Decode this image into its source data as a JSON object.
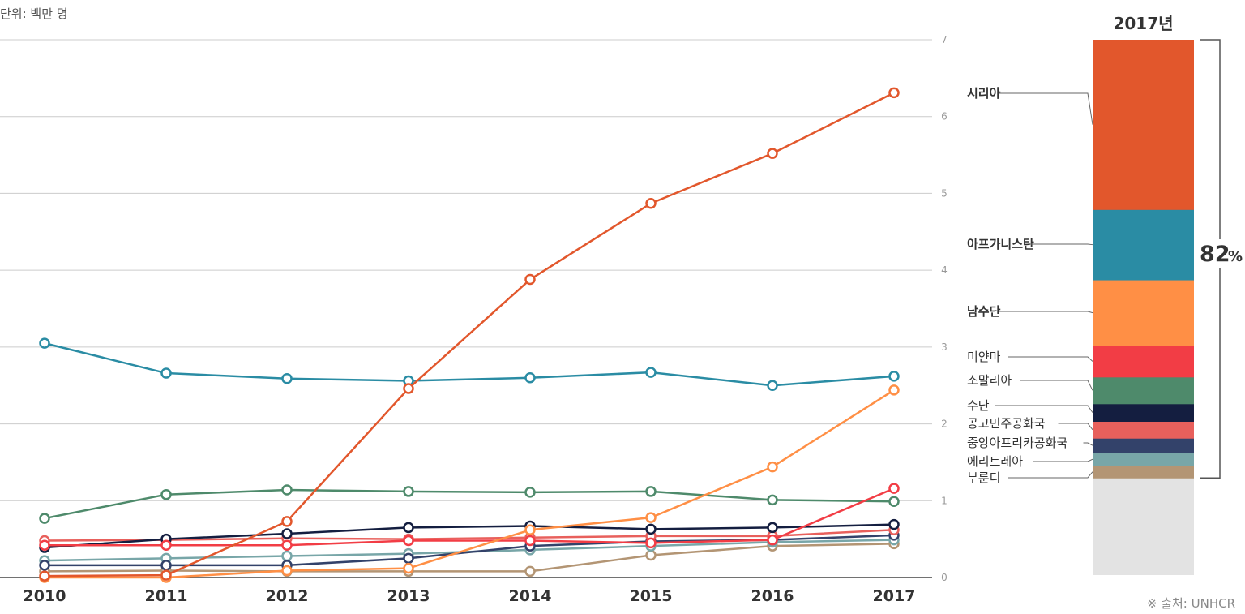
{
  "unit_label": "단위: 백만 명",
  "source_label": "※ 출처: UNHCR",
  "chart_data": [
    {
      "type": "line",
      "title": "",
      "x": [
        "2010",
        "2011",
        "2012",
        "2013",
        "2014",
        "2015",
        "2016",
        "2017"
      ],
      "ylim": [
        0,
        7
      ],
      "yticks": [
        "0",
        "1",
        "2",
        "3",
        "4",
        "5",
        "6",
        "7"
      ],
      "grid": true,
      "series": [
        {
          "name": "시리아",
          "color": "#E2572C",
          "values": [
            0.02,
            0.03,
            0.73,
            2.46,
            3.88,
            4.87,
            5.52,
            6.31
          ]
        },
        {
          "name": "아프가니스탄",
          "color": "#2A8CA4",
          "values": [
            3.05,
            2.66,
            2.59,
            2.56,
            2.6,
            2.67,
            2.5,
            2.62
          ]
        },
        {
          "name": "남수단",
          "color": "#FF8F45",
          "values": [
            0.0,
            0.0,
            0.09,
            0.12,
            0.62,
            0.78,
            1.44,
            2.44
          ]
        },
        {
          "name": "미얀마",
          "color": "#F23D45",
          "values": [
            0.42,
            0.42,
            0.42,
            0.48,
            0.48,
            0.45,
            0.49,
            1.16
          ]
        },
        {
          "name": "소말리아",
          "color": "#4E8A6B",
          "values": [
            0.77,
            1.08,
            1.14,
            1.12,
            1.11,
            1.12,
            1.01,
            0.99
          ]
        },
        {
          "name": "수단",
          "color": "#141E40",
          "values": [
            0.39,
            0.5,
            0.57,
            0.65,
            0.67,
            0.63,
            0.65,
            0.69
          ]
        },
        {
          "name": "공고민주공화국",
          "color": "#E8605C",
          "values": [
            0.48,
            0.49,
            0.51,
            0.5,
            0.52,
            0.54,
            0.54,
            0.62
          ]
        },
        {
          "name": "중앙아프리카공화국",
          "color": "#33426A",
          "values": [
            0.16,
            0.16,
            0.16,
            0.25,
            0.41,
            0.47,
            0.49,
            0.55
          ]
        },
        {
          "name": "에리트레아",
          "color": "#78A6A8",
          "values": [
            0.22,
            0.25,
            0.28,
            0.31,
            0.36,
            0.41,
            0.46,
            0.49
          ]
        },
        {
          "name": "부룬디",
          "color": "#B39574",
          "values": [
            0.08,
            0.09,
            0.08,
            0.08,
            0.08,
            0.29,
            0.41,
            0.44
          ]
        }
      ]
    },
    {
      "type": "bar",
      "title": "2017년",
      "stacked": true,
      "ylim": [
        0,
        7
      ],
      "bracket_label": "82",
      "bracket_unit": "%",
      "categories": [
        "시리아",
        "아프가니스탄",
        "남수단",
        "미얀마",
        "소말리아",
        "수단",
        "공고민주공화국",
        "중앙아프리카공화국",
        "에리트레아",
        "부룬디"
      ],
      "bold_labels": [
        "시리아",
        "아프가니스탄",
        "남수단"
      ],
      "values": [
        2.22,
        0.92,
        0.86,
        0.41,
        0.35,
        0.23,
        0.22,
        0.19,
        0.17,
        0.16
      ],
      "remainder": 1.27,
      "colors": [
        "#E2572C",
        "#2A8CA4",
        "#FF8F45",
        "#F23D45",
        "#4E8A6B",
        "#141E40",
        "#E8605C",
        "#33426A",
        "#78A6A8",
        "#B39574"
      ],
      "remainder_color": "#E3E3E3"
    }
  ]
}
